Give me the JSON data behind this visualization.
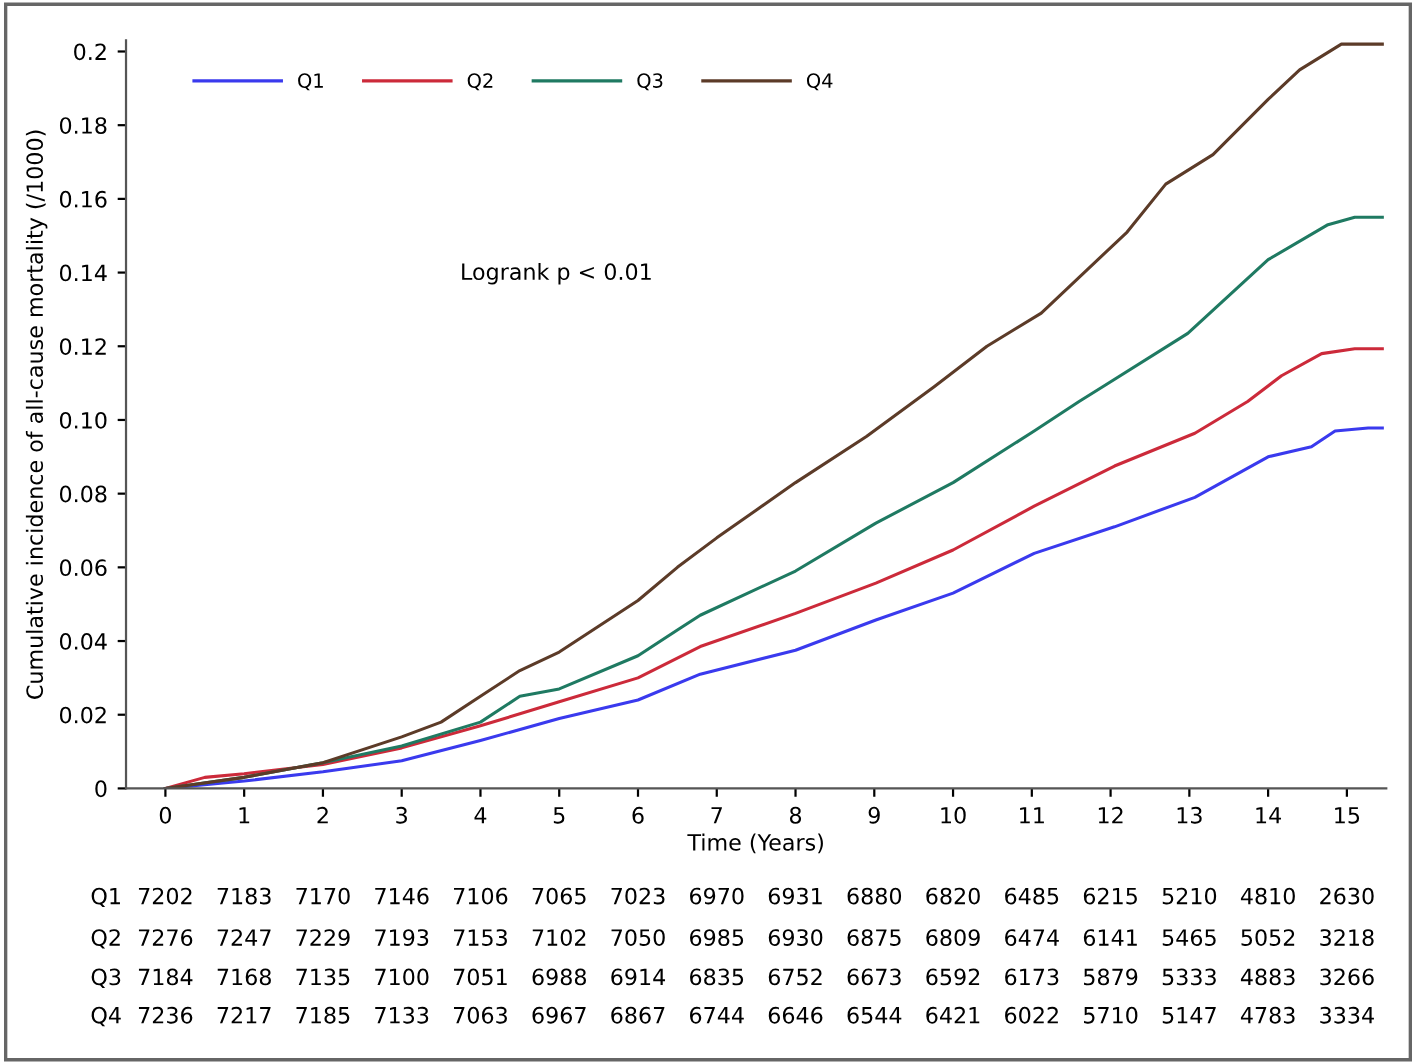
{
  "chart_data": {
    "type": "line",
    "xlabel": "Time (Years)",
    "ylabel": "Cumulative incidence of all-cause mortality (/1000)",
    "xlim": [
      -0.5,
      15.5
    ],
    "xticks": [
      0,
      1,
      2,
      3,
      4,
      5,
      6,
      7,
      8,
      9,
      10,
      11,
      12,
      13,
      14,
      15
    ],
    "ylim": [
      0,
      0.203
    ],
    "yticks": [
      0,
      0.02,
      0.04,
      0.06,
      0.08,
      {
        "value": 0.1,
        "label": "0.10"
      },
      0.12,
      0.14,
      0.16,
      0.18,
      {
        "value": 0.2,
        "label": "0.2"
      }
    ],
    "legend": "top left",
    "grid": false,
    "marker": "none",
    "line_style": "solid",
    "series": [
      {
        "name": "Q1",
        "color": "#3a3aee",
        "x": [
          0,
          1,
          2,
          3,
          4,
          5,
          6,
          6.79,
          8,
          9.02,
          10,
          11.03,
          12.05,
          13.07,
          14,
          14.55,
          14.85,
          15.27,
          15.45
        ],
        "values": [
          0,
          0.002,
          0.0045,
          0.0075,
          0.013,
          0.019,
          0.024,
          0.031,
          0.0375,
          0.0457,
          0.053,
          0.0638,
          0.071,
          0.079,
          0.09,
          0.0927,
          0.097,
          0.0978,
          0.0978
        ]
      },
      {
        "name": "Q2",
        "color": "#cc2a3a",
        "x": [
          0,
          0.5,
          1,
          2,
          3,
          4,
          5,
          6,
          6.79,
          8,
          9.02,
          10,
          11.03,
          12.05,
          13.07,
          13.74,
          14.17,
          14.68,
          15.1,
          15.45
        ],
        "values": [
          0,
          0.003,
          0.004,
          0.0065,
          0.011,
          0.017,
          0.0235,
          0.03,
          0.0385,
          0.0475,
          0.0557,
          0.0647,
          0.0766,
          0.0875,
          0.0964,
          0.105,
          0.112,
          0.118,
          0.1193,
          0.1193
        ]
      },
      {
        "name": "Q3",
        "color": "#1f7a62",
        "x": [
          0,
          1,
          2,
          3,
          4,
          4.5,
          5,
          6,
          6.5,
          6.79,
          8,
          9.02,
          10,
          11.03,
          11.6,
          11.9,
          12.98,
          14,
          14.76,
          15.1,
          15.45
        ],
        "values": [
          0,
          0.003,
          0.007,
          0.0115,
          0.018,
          0.025,
          0.027,
          0.036,
          0.043,
          0.047,
          0.059,
          0.072,
          0.083,
          0.097,
          0.105,
          0.109,
          0.1235,
          0.1435,
          0.153,
          0.155,
          0.155
        ]
      },
      {
        "name": "Q4",
        "color": "#5c3b28",
        "x": [
          0,
          1,
          2,
          3,
          3.5,
          4,
          4.5,
          5,
          5.5,
          6,
          6.5,
          7,
          8,
          8.9,
          9.76,
          10.43,
          11.12,
          12.21,
          12.7,
          13.3,
          14,
          14.4,
          14.93,
          15.45
        ],
        "values": [
          0,
          0.003,
          0.007,
          0.014,
          0.018,
          0.025,
          0.032,
          0.037,
          0.044,
          0.051,
          0.06,
          0.068,
          0.083,
          0.0955,
          0.109,
          0.12,
          0.129,
          0.151,
          0.164,
          0.172,
          0.187,
          0.195,
          0.202,
          0.202
        ]
      }
    ],
    "annotations": [
      "Logrank p < 0.01",
      "Q1",
      "7202",
      "7183",
      "7170",
      "7146",
      "7106",
      "7065",
      "7023",
      "6970",
      "6931",
      "6880",
      "6820",
      "6485",
      "6215",
      "5210",
      "4810",
      "2630",
      "Q2",
      "7276",
      "7247",
      "7229",
      "7193",
      "7153",
      "7102",
      "7050",
      "6985",
      "6930",
      "6875",
      "6809",
      "6474",
      "6141",
      "5465",
      "5052",
      "3218",
      "Q3",
      "7184",
      "7168",
      "7135",
      "7100",
      "7051",
      "6988",
      "6914",
      "6835",
      "6752",
      "6673",
      "6592",
      "6173",
      "5879",
      "5333",
      "4883",
      "3266",
      "Q4",
      "7236",
      "7217",
      "7185",
      "7133",
      "7063",
      "6967",
      "6867",
      "6744",
      "6646",
      "6544",
      "6421",
      "6022",
      "5710",
      "5147",
      "4783",
      "3334"
    ]
  }
}
